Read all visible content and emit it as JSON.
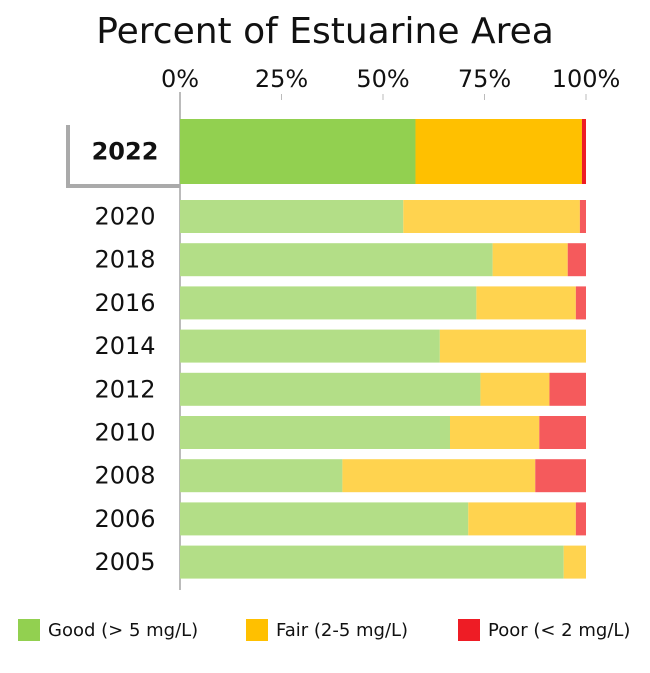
{
  "chart_data": {
    "type": "stacked_barh",
    "title": "Percent of Estuarine Area",
    "categories": [
      "2022",
      "2020",
      "2018",
      "2016",
      "2014",
      "2012",
      "2010",
      "2008",
      "2006",
      "2005"
    ],
    "highlight": 0,
    "series": [
      {
        "name": "Good (> 5 mg/L)",
        "color": "#92d050",
        "muted_color": "#b3de87",
        "values": [
          58,
          55,
          77,
          73,
          64,
          74,
          66.5,
          40,
          71,
          94.5
        ]
      },
      {
        "name": "Fair (2-5 mg/L)",
        "color": "#ffc000",
        "muted_color": "#ffd34f",
        "values": [
          41,
          43.5,
          18.5,
          24.5,
          36,
          17,
          22,
          47.5,
          26.5,
          5.5
        ]
      },
      {
        "name": "Poor (< 2 mg/L)",
        "color": "#ee1c25",
        "muted_color": "#f55a5c",
        "values": [
          1,
          1.5,
          4.5,
          2.5,
          0,
          9,
          11.5,
          12.5,
          2.5,
          0
        ]
      }
    ],
    "xlim": [
      0,
      100
    ],
    "xticks": [
      {
        "value": 0,
        "label": "0%"
      },
      {
        "value": 25,
        "label": "25%"
      },
      {
        "value": 50,
        "label": "50%"
      },
      {
        "value": 75,
        "label": "75%"
      },
      {
        "value": 100,
        "label": "100%"
      }
    ]
  }
}
